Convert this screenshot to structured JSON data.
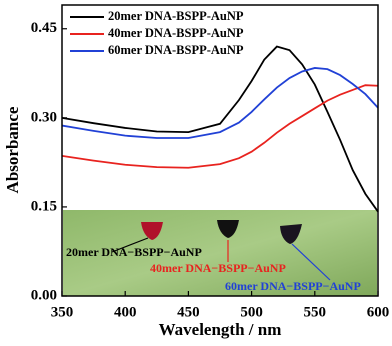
{
  "chart_data": {
    "type": "line",
    "x_label": "Wavelength / nm",
    "y_label": "Absorbance",
    "x": [
      350,
      375,
      400,
      425,
      450,
      475,
      490,
      500,
      510,
      520,
      530,
      540,
      550,
      560,
      570,
      580,
      590,
      600
    ],
    "series": [
      {
        "name": "20mer DNA-BSPP-AuNP",
        "color": "#000000",
        "values": [
          0.3,
          0.291,
          0.283,
          0.277,
          0.276,
          0.29,
          0.33,
          0.362,
          0.398,
          0.42,
          0.414,
          0.39,
          0.356,
          0.31,
          0.263,
          0.212,
          0.172,
          0.142
        ]
      },
      {
        "name": "40mer DNA-BSPP-AuNP",
        "color": "#e8231f",
        "values": [
          0.236,
          0.228,
          0.221,
          0.217,
          0.216,
          0.222,
          0.232,
          0.243,
          0.258,
          0.275,
          0.29,
          0.303,
          0.316,
          0.329,
          0.339,
          0.347,
          0.355,
          0.354
        ]
      },
      {
        "name": "60mer DNA-BSPP-AuNP",
        "color": "#2141d6",
        "values": [
          0.287,
          0.278,
          0.27,
          0.266,
          0.266,
          0.276,
          0.292,
          0.31,
          0.331,
          0.351,
          0.367,
          0.378,
          0.384,
          0.382,
          0.372,
          0.357,
          0.34,
          0.317
        ]
      }
    ],
    "xlim": [
      350,
      600
    ],
    "xticks": [
      350,
      400,
      450,
      500,
      550,
      600
    ],
    "ylim": [
      0,
      0.49
    ],
    "yticks": [
      {
        "value": 0,
        "label": "0.00"
      },
      0.15,
      {
        "value": 0.3,
        "label": "0.30"
      },
      0.45
    ],
    "legend": "upper left",
    "inset_annotations": [
      {
        "text": "20mer DNA−BSPP−AuNP",
        "color": "#000000"
      },
      {
        "text": "40mer DNA−BSPP−AuNP",
        "color": "#e8231f"
      },
      {
        "text": "60mer DNA−BSPP−AuNP",
        "color": "#2141d6"
      }
    ]
  }
}
